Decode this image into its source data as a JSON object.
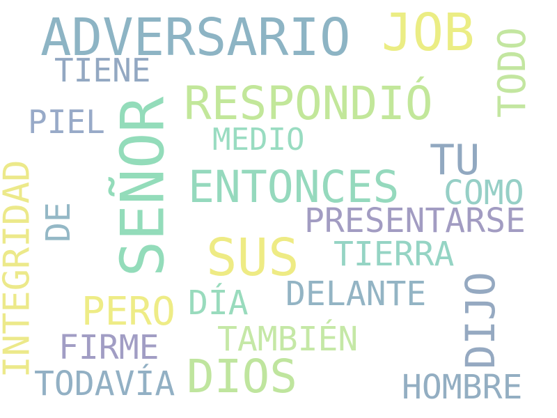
{
  "words": {
    "adversario": {
      "text": "ADVERSARIO",
      "color": "#8db4c4"
    },
    "job": {
      "text": "JOB",
      "color": "#ebed84"
    },
    "todo": {
      "text": "TODO",
      "color": "#c3e6a0"
    },
    "tiene": {
      "text": "TIENE",
      "color": "#93a8c2"
    },
    "senor": {
      "text": "SEÑOR",
      "color": "#93dcba"
    },
    "respondio": {
      "text": "RESPONDIÓ",
      "color": "#c2e79a"
    },
    "piel": {
      "text": "PIEL",
      "color": "#98aac8"
    },
    "medio": {
      "text": "MEDIO",
      "color": "#99dcc1"
    },
    "tu": {
      "text": "TU",
      "color": "#91a8c0"
    },
    "integridad": {
      "text": "INTEGRIDAD",
      "color": "#ece98a"
    },
    "entonces": {
      "text": "ENTONCES",
      "color": "#95d9bd"
    },
    "como": {
      "text": "COMO",
      "color": "#96cfc6"
    },
    "de": {
      "text": "DE",
      "color": "#94b8c6"
    },
    "presentarse": {
      "text": "PRESENTARSE",
      "color": "#a29cc2"
    },
    "sus": {
      "text": "SUS",
      "color": "#eeeb84"
    },
    "tierra": {
      "text": "TIERRA",
      "color": "#95d4c4"
    },
    "dijo": {
      "text": "DIJO",
      "color": "#95a9c1"
    },
    "delante": {
      "text": "DELANTE",
      "color": "#93b4c4"
    },
    "pero": {
      "text": "PERO",
      "color": "#eeec86"
    },
    "dia": {
      "text": "DÍA",
      "color": "#99dbbd"
    },
    "firme": {
      "text": "FIRME",
      "color": "#a19dc4"
    },
    "tambien": {
      "text": "TAMBIÉN",
      "color": "#c5e8a6"
    },
    "dios": {
      "text": "DIOS",
      "color": "#bfe59e"
    },
    "todavia": {
      "text": "TODAVÍA",
      "color": "#92b0c4"
    },
    "hombre": {
      "text": "HOMBRE",
      "color": "#93aec2"
    }
  }
}
